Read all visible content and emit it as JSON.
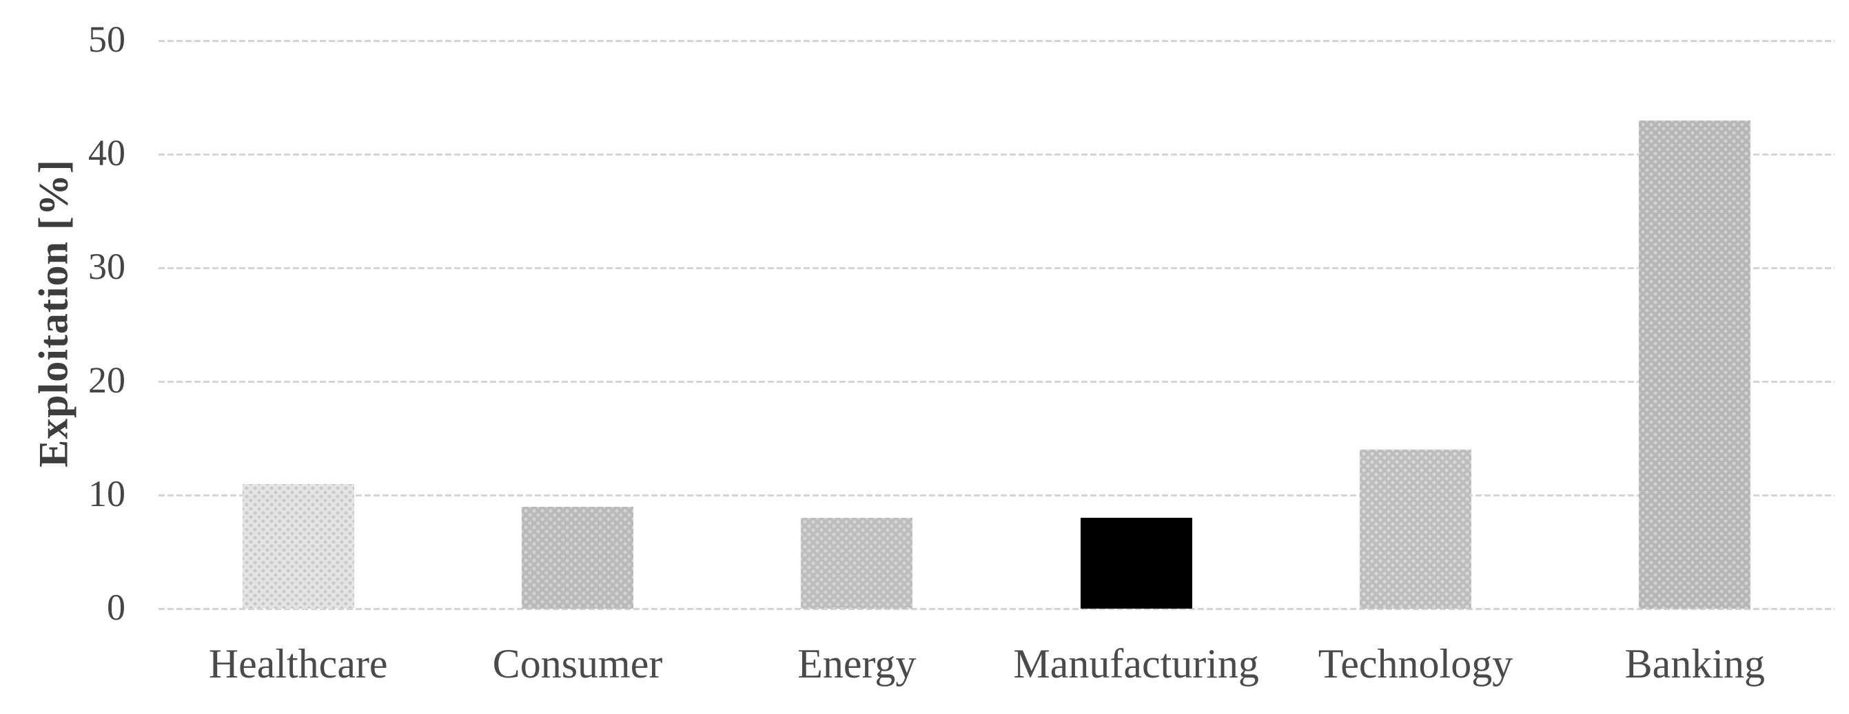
{
  "chart_data": {
    "type": "bar",
    "title": "",
    "ylabel": "Exploitation [%]",
    "xlabel": "",
    "categories": [
      "Healthcare",
      "Consumer",
      "Energy",
      "Manufacturing",
      "Technology",
      "Banking"
    ],
    "values": [
      11,
      9,
      8,
      8,
      14,
      43
    ],
    "ylim": [
      0,
      50
    ],
    "yticks": [
      0,
      10,
      20,
      30,
      40,
      50
    ],
    "grid": "horizontal-dashed",
    "legend_position": "none",
    "gridline_color": "#d4d4d4",
    "text_color": "#454545",
    "axis_title_color": "#3d3d3d",
    "background_color": "#ffffff",
    "bar_styles": [
      {
        "name": "healthcare-fill",
        "base": "#e4e4e4",
        "dot": "#cbcbcb"
      },
      {
        "name": "consumer-fill",
        "base": "#b9b9b9",
        "dot": "#d2d2d2"
      },
      {
        "name": "energy-fill",
        "base": "#bdbdbd",
        "dot": "#d5d5d5"
      },
      {
        "name": "manufacturing-fill",
        "base": "#000000",
        "dot": null
      },
      {
        "name": "technology-fill",
        "base": "#bdbdbd",
        "dot": "#d8d8d8"
      },
      {
        "name": "banking-fill",
        "base": "#b6b6b6",
        "dot": "#d1d1d1"
      }
    ]
  }
}
